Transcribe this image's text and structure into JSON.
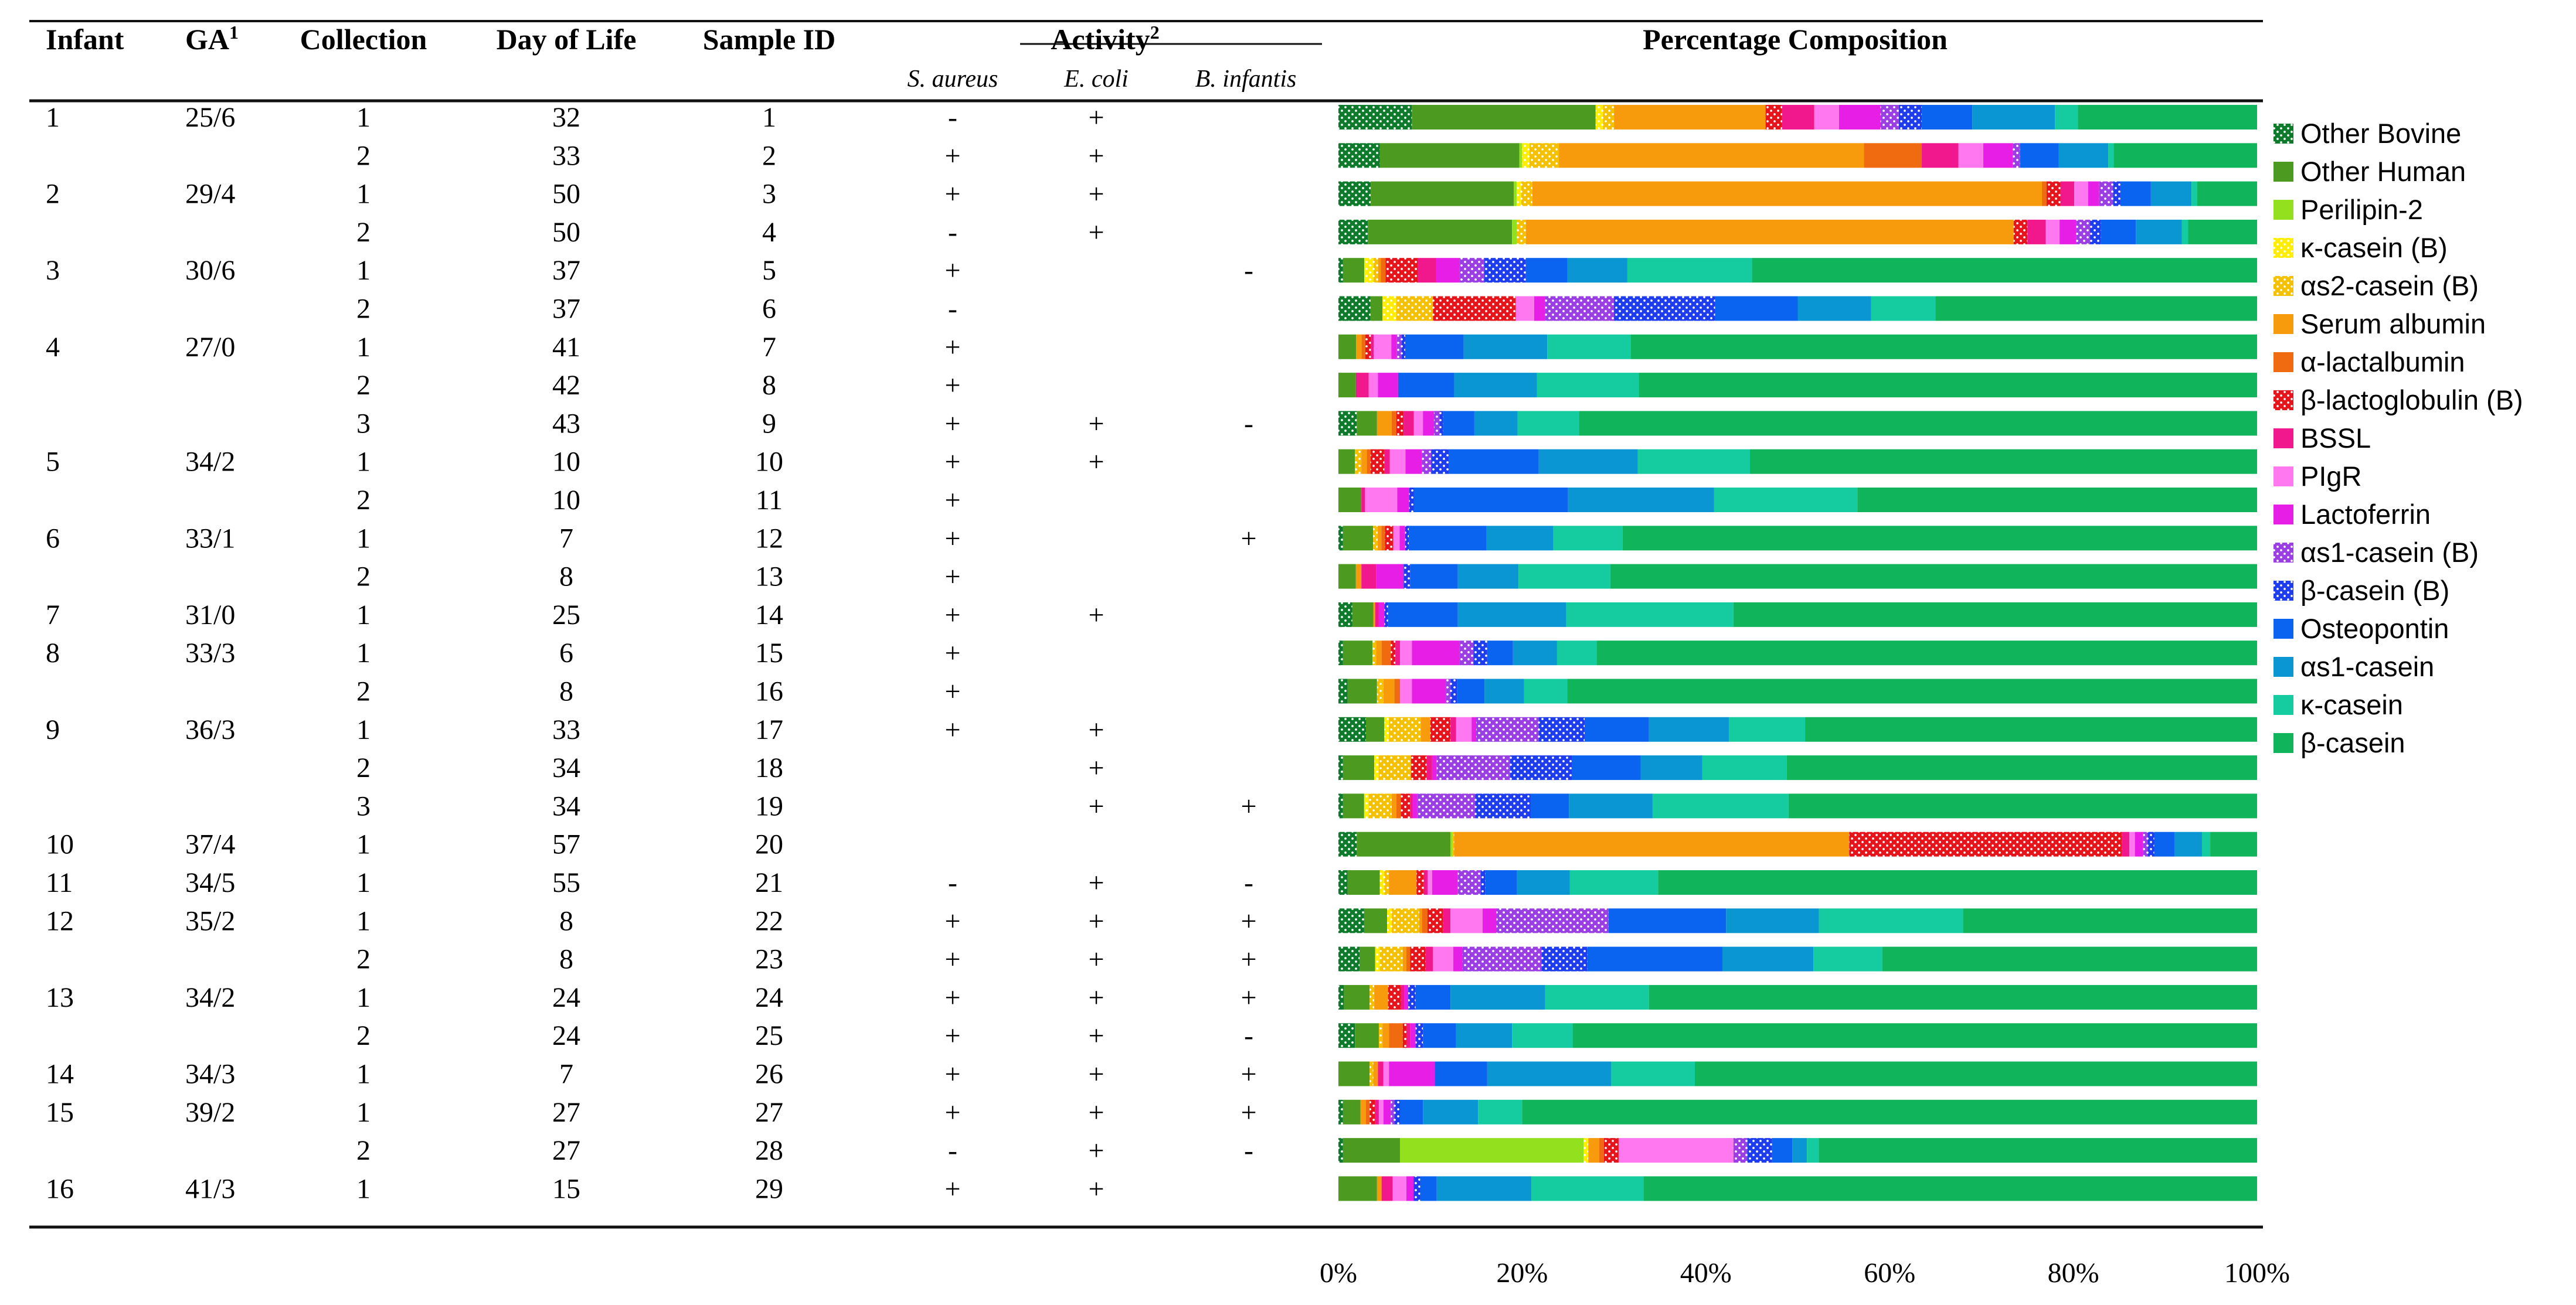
{
  "table": {
    "headers": {
      "infant": "Infant",
      "ga": "GA",
      "ga_sup": "1",
      "collection": "Collection",
      "day": "Day of Life",
      "sample": "Sample ID",
      "activity": "Activity",
      "activity_sup": "2",
      "composition": "Percentage Composition"
    },
    "activity_subheaders": [
      "S. aureus",
      "E. coli",
      "B. infantis"
    ]
  },
  "chart_data": {
    "type": "bar",
    "orientation": "horizontal",
    "stacked": true,
    "title": "Percentage Composition",
    "xlim": [
      0,
      100
    ],
    "x_ticks": [
      "0%",
      "20%",
      "40%",
      "60%",
      "80%",
      "100%"
    ],
    "legend_position": "right",
    "series": [
      {
        "name": "Other Bovine",
        "color": "#0d7a2c",
        "pattern": "dots"
      },
      {
        "name": "Other Human",
        "color": "#4c9a1f"
      },
      {
        "name": "Perilipin-2",
        "color": "#93e01f"
      },
      {
        "name": "κ-casein (B)",
        "color": "#ffee00",
        "pattern": "dots"
      },
      {
        "name": "αs2-casein (B)",
        "color": "#f5c000",
        "pattern": "dots"
      },
      {
        "name": "Serum albumin",
        "color": "#f79a0c"
      },
      {
        "name": "α-lactalbumin",
        "color": "#f06a10"
      },
      {
        "name": "β-lactoglobulin (B)",
        "color": "#e8141c",
        "pattern": "dots"
      },
      {
        "name": "BSSL",
        "color": "#f0188c"
      },
      {
        "name": "PIgR",
        "color": "#ff78f0"
      },
      {
        "name": "Lactoferrin",
        "color": "#e61ee6"
      },
      {
        "name": "αs1-casein (B)",
        "color": "#9a3ee6",
        "pattern": "dots"
      },
      {
        "name": "β-casein (B)",
        "color": "#1e3cf0",
        "pattern": "dots"
      },
      {
        "name": "Osteopontin",
        "color": "#0a64f0"
      },
      {
        "name": "αs1-casein",
        "color": "#0a96d2"
      },
      {
        "name": "κ-casein",
        "color": "#14cca0"
      },
      {
        "name": "β-casein",
        "color": "#10b45a"
      }
    ],
    "rows": [
      {
        "infant": "1",
        "ga": "25/6",
        "collection": "1",
        "day": "32",
        "sample": "1",
        "sa": "-",
        "ec": "+",
        "bi": "",
        "values": [
          8,
          20,
          0,
          0.8,
          1.2,
          16.5,
          0,
          1.8,
          3.5,
          2.7,
          4.5,
          2,
          2.5,
          5.5,
          9,
          2.5,
          19.5
        ]
      },
      {
        "infant": "",
        "ga": "",
        "collection": "2",
        "day": "33",
        "sample": "2",
        "sa": "+",
        "ec": "+",
        "bi": "",
        "values": [
          4.5,
          15.2,
          0.3,
          0.8,
          3.2,
          33.2,
          6.3,
          0,
          4,
          2.7,
          3.2,
          0.8,
          0,
          4.2,
          5.4,
          0.6,
          15.6
        ]
      },
      {
        "infant": "2",
        "ga": "29/4",
        "collection": "1",
        "day": "50",
        "sample": "3",
        "sa": "+",
        "ec": "+",
        "bi": "",
        "values": [
          3.5,
          15.5,
          0.3,
          0.5,
          1.2,
          55.2,
          0.5,
          1.5,
          1.5,
          1.5,
          1.2,
          1.5,
          0.8,
          3.3,
          4.4,
          0.6,
          6.5
        ]
      },
      {
        "infant": "",
        "ga": "",
        "collection": "2",
        "day": "50",
        "sample": "4",
        "sa": "-",
        "ec": "+",
        "bi": "",
        "values": [
          3.2,
          15.7,
          0.5,
          0,
          1,
          53.1,
          0,
          1.5,
          2,
          1.5,
          1.8,
          1.5,
          1.2,
          3.8,
          5,
          0.7,
          7.5
        ]
      },
      {
        "infant": "3",
        "ga": "30/6",
        "collection": "1",
        "day": "37",
        "sample": "5",
        "sa": "+",
        "ec": "",
        "bi": "-",
        "values": [
          0.5,
          2.3,
          0,
          1,
          0.5,
          0.3,
          0.5,
          3.5,
          2,
          0,
          2.5,
          2.7,
          4.5,
          4.5,
          6.5,
          13.5,
          54.7
        ]
      },
      {
        "infant": "",
        "ga": "",
        "collection": "2",
        "day": "37",
        "sample": "6",
        "sa": "-",
        "ec": "",
        "bi": "",
        "values": [
          3.5,
          1.3,
          0,
          1.5,
          4,
          0,
          0,
          9,
          0,
          2,
          1.2,
          7.5,
          11,
          9,
          8,
          7,
          35
        ]
      },
      {
        "infant": "4",
        "ga": "27/0",
        "collection": "1",
        "day": "41",
        "sample": "7",
        "sa": "+",
        "ec": "",
        "bi": "",
        "values": [
          0,
          1.9,
          0,
          0,
          0,
          0.6,
          0.4,
          0.6,
          0.3,
          1.9,
          0.6,
          0.5,
          0.4,
          6.3,
          9,
          9,
          67.5
        ]
      },
      {
        "infant": "",
        "ga": "",
        "collection": "2",
        "day": "42",
        "sample": "8",
        "sa": "+",
        "ec": "",
        "bi": "",
        "values": [
          0,
          1.9,
          0,
          0,
          0,
          0,
          0,
          0,
          1.4,
          1,
          2.2,
          0,
          0,
          6.1,
          9,
          11.1,
          67.3
        ]
      },
      {
        "infant": "",
        "ga": "",
        "collection": "3",
        "day": "43",
        "sample": "9",
        "sa": "+",
        "ec": "+",
        "bi": "-",
        "values": [
          2,
          2.2,
          0,
          0,
          0,
          1.6,
          0.5,
          0.8,
          1.1,
          1,
          1.2,
          0.6,
          0.4,
          3.4,
          4.7,
          6.7,
          73.8
        ]
      },
      {
        "infant": "5",
        "ga": "34/2",
        "collection": "1",
        "day": "10",
        "sample": "10",
        "sa": "+",
        "ec": "+",
        "bi": "",
        "values": [
          0,
          1.8,
          0,
          0,
          0.7,
          0.6,
          0.4,
          1.5,
          0.6,
          1.7,
          1.8,
          1,
          1.9,
          9.8,
          10.8,
          12.2,
          55.2
        ]
      },
      {
        "infant": "",
        "ga": "",
        "collection": "2",
        "day": "10",
        "sample": "11",
        "sa": "+",
        "ec": "",
        "bi": "",
        "values": [
          0,
          2.5,
          0,
          0,
          0,
          0,
          0,
          0,
          0.4,
          3.5,
          1.3,
          0,
          0.5,
          16.8,
          15.9,
          15.6,
          43.5
        ]
      },
      {
        "infant": "6",
        "ga": "33/1",
        "collection": "1",
        "day": "7",
        "sample": "12",
        "sa": "+",
        "ec": "",
        "bi": "+",
        "values": [
          0.5,
          3.3,
          0,
          0,
          0.5,
          0.4,
          0.4,
          0.9,
          0,
          0.7,
          0.6,
          0,
          0.4,
          8.5,
          7.3,
          7.6,
          69.4
        ]
      },
      {
        "infant": "",
        "ga": "",
        "collection": "2",
        "day": "8",
        "sample": "13",
        "sa": "+",
        "ec": "",
        "bi": "",
        "values": [
          0,
          1.9,
          0,
          0,
          0,
          0.6,
          0,
          0,
          1.6,
          0,
          3,
          0,
          0.7,
          5.2,
          6.6,
          10,
          70.4
        ]
      },
      {
        "infant": "7",
        "ga": "31/0",
        "collection": "1",
        "day": "25",
        "sample": "14",
        "sa": "+",
        "ec": "+",
        "bi": "",
        "values": [
          1.5,
          2.3,
          0,
          0,
          0,
          0.2,
          0,
          0,
          0.4,
          0,
          0.6,
          0,
          0.4,
          7.6,
          11.8,
          18.2,
          57
        ]
      },
      {
        "infant": "8",
        "ga": "33/3",
        "collection": "1",
        "day": "6",
        "sample": "15",
        "sa": "+",
        "ec": "",
        "bi": "",
        "values": [
          0.5,
          3.2,
          0,
          0,
          0.4,
          0.6,
          1,
          0.5,
          0.5,
          1.3,
          5.2,
          1.5,
          1.5,
          2.8,
          4.8,
          4.3,
          71.9
        ]
      },
      {
        "infant": "",
        "ga": "",
        "collection": "2",
        "day": "8",
        "sample": "16",
        "sa": "+",
        "ec": "",
        "bi": "",
        "values": [
          1,
          3.2,
          0,
          0,
          0.7,
          1.2,
          0.6,
          0,
          0,
          1.3,
          3.7,
          0.5,
          0.7,
          3,
          4.3,
          4.7,
          75.1
        ]
      },
      {
        "infant": "9",
        "ga": "36/3",
        "collection": "1",
        "day": "33",
        "sample": "17",
        "sa": "+",
        "ec": "+",
        "bi": "",
        "values": [
          3,
          2,
          0,
          0.5,
          3.5,
          1,
          0,
          2.2,
          0.6,
          1.7,
          0.5,
          6.8,
          5,
          7,
          8.7,
          8.3,
          49.2
        ]
      },
      {
        "infant": "",
        "ga": "",
        "collection": "2",
        "day": "34",
        "sample": "18",
        "sa": "",
        "ec": "+",
        "bi": "",
        "values": [
          0.5,
          3.4,
          0,
          0.5,
          3.5,
          0,
          0,
          1.7,
          0.6,
          0,
          0.5,
          8,
          6.7,
          7.5,
          6.7,
          9.2,
          51.2
        ]
      },
      {
        "infant": "",
        "ga": "",
        "collection": "3",
        "day": "34",
        "sample": "19",
        "sa": "",
        "ec": "+",
        "bi": "+",
        "values": [
          0.5,
          2.3,
          0,
          0.5,
          2.5,
          0.5,
          0.5,
          1,
          0.3,
          0,
          0.5,
          6.3,
          6,
          4.2,
          9.1,
          14.8,
          51
        ]
      },
      {
        "infant": "10",
        "ga": "37/4",
        "collection": "1",
        "day": "57",
        "sample": "20",
        "sa": "",
        "ec": "",
        "bi": "",
        "values": [
          2,
          10.2,
          0.2,
          0,
          0.2,
          43,
          0,
          29.7,
          0.8,
          0.6,
          0.9,
          0.5,
          0.7,
          2.2,
          3,
          0.9,
          5.1
        ]
      },
      {
        "infant": "11",
        "ga": "34/5",
        "collection": "1",
        "day": "55",
        "sample": "21",
        "sa": "-",
        "ec": "+",
        "bi": "-",
        "values": [
          1,
          3.5,
          0,
          0.5,
          0.5,
          3,
          0,
          0.8,
          0.4,
          0.5,
          2.8,
          2.5,
          0.5,
          3.4,
          5.8,
          9.6,
          65.2
        ]
      },
      {
        "infant": "12",
        "ga": "35/2",
        "collection": "1",
        "day": "8",
        "sample": "22",
        "sa": "+",
        "ec": "+",
        "bi": "+",
        "values": [
          2.8,
          2.5,
          0,
          0.5,
          3,
          0.3,
          0.6,
          1.7,
          0.8,
          3.5,
          1.5,
          12.2,
          0,
          12.8,
          10.1,
          15.7,
          32
        ]
      },
      {
        "infant": "",
        "ga": "",
        "collection": "2",
        "day": "8",
        "sample": "23",
        "sa": "+",
        "ec": "+",
        "bi": "+",
        "values": [
          2.3,
          1.7,
          0,
          0.5,
          2.5,
          0.4,
          0.4,
          1.7,
          0.8,
          2.2,
          1,
          8.6,
          5,
          14.7,
          9.9,
          7.5,
          40.8
        ]
      },
      {
        "infant": "13",
        "ga": "34/2",
        "collection": "1",
        "day": "24",
        "sample": "24",
        "sa": "+",
        "ec": "+",
        "bi": "+",
        "values": [
          0.6,
          2.8,
          0,
          0,
          0.5,
          1.5,
          0,
          1.4,
          0.4,
          0,
          0.4,
          0,
          0.8,
          3.8,
          10.3,
          11.3,
          66.2
        ]
      },
      {
        "infant": "",
        "ga": "",
        "collection": "2",
        "day": "24",
        "sample": "25",
        "sa": "+",
        "ec": "+",
        "bi": "-",
        "values": [
          1.8,
          2.6,
          0,
          0,
          0.4,
          0.7,
          1.5,
          0.4,
          0.4,
          0,
          0.6,
          0,
          0.8,
          3.6,
          6.1,
          6.6,
          74.5
        ]
      },
      {
        "infant": "14",
        "ga": "34/3",
        "collection": "1",
        "day": "7",
        "sample": "26",
        "sa": "+",
        "ec": "+",
        "bi": "+",
        "values": [
          0,
          3.4,
          0,
          0,
          0.4,
          0.5,
          0,
          0,
          0.6,
          0.6,
          5,
          0,
          0,
          5.7,
          13.5,
          9.1,
          61.2
        ]
      },
      {
        "infant": "15",
        "ga": "39/2",
        "collection": "1",
        "day": "27",
        "sample": "27",
        "sa": "+",
        "ec": "+",
        "bi": "+",
        "values": [
          0.5,
          1.9,
          0,
          0,
          0,
          0.6,
          0.4,
          0.6,
          0.4,
          0.5,
          0.8,
          0.4,
          0.6,
          2.5,
          6,
          4.8,
          80
        ]
      },
      {
        "infant": "",
        "ga": "",
        "collection": "2",
        "day": "27",
        "sample": "28",
        "sa": "-",
        "ec": "+",
        "bi": "-",
        "values": [
          0.5,
          6.2,
          20,
          0.5,
          0,
          1.2,
          0.5,
          1.6,
          0,
          12.5,
          0,
          1.5,
          2.7,
          2.2,
          1.6,
          1.3,
          47.7
        ]
      },
      {
        "infant": "16",
        "ga": "41/3",
        "collection": "1",
        "day": "15",
        "sample": "29",
        "sa": "+",
        "ec": "+",
        "bi": "",
        "values": [
          0,
          4.2,
          0,
          0,
          0,
          0.5,
          0,
          0,
          1.2,
          1.5,
          0.8,
          0,
          0.7,
          1.8,
          10.3,
          12.2,
          66.8
        ]
      }
    ]
  }
}
